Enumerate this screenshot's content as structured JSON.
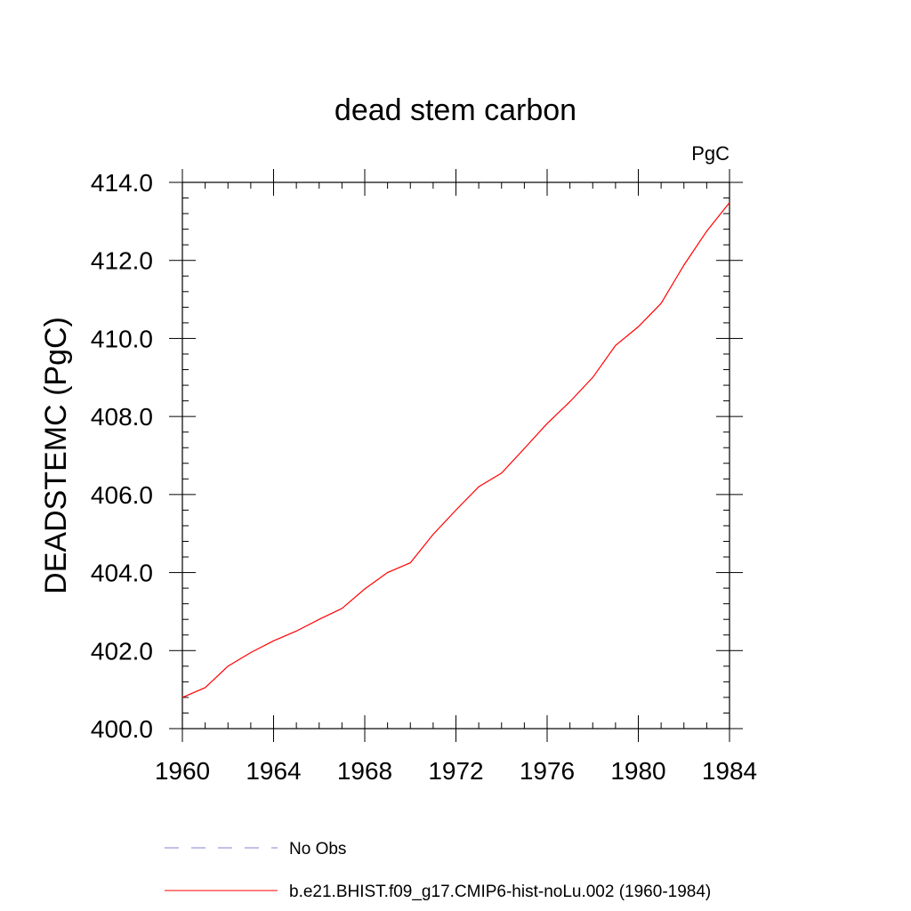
{
  "chart_data": {
    "type": "line",
    "title": "dead stem carbon",
    "units_label": "PgC",
    "xlabel": "",
    "ylabel": "DEADSTEMC  (PgC)",
    "xlim": [
      1960,
      1984
    ],
    "ylim": [
      400.0,
      414.0
    ],
    "x_ticks": [
      "1960",
      "1964",
      "1968",
      "1972",
      "1976",
      "1980",
      "1984"
    ],
    "y_ticks": [
      "400.0",
      "402.0",
      "404.0",
      "406.0",
      "408.0",
      "410.0",
      "412.0",
      "414.0"
    ],
    "grid": false,
    "legend_position": "bottom",
    "series": [
      {
        "name": "b.e21.BHIST.f09_g17.CMIP6-hist-noLu.002 (1960-1984)",
        "color": "#ff0000",
        "style": "solid",
        "x": [
          1960,
          1961,
          1962,
          1963,
          1964,
          1965,
          1966,
          1967,
          1968,
          1969,
          1970,
          1971,
          1972,
          1973,
          1974,
          1975,
          1976,
          1977,
          1978,
          1979,
          1980,
          1981,
          1982,
          1983,
          1984
        ],
        "y": [
          400.8,
          401.05,
          401.6,
          401.95,
          402.25,
          402.5,
          402.8,
          403.08,
          403.58,
          404.0,
          404.25,
          404.98,
          405.6,
          406.2,
          406.55,
          407.18,
          407.82,
          408.38,
          409.0,
          409.82,
          410.3,
          410.9,
          411.88,
          412.75,
          413.48
        ]
      }
    ],
    "legend": [
      {
        "label": "No Obs",
        "color": "#8080d0",
        "style": "dashed"
      },
      {
        "label": "b.e21.BHIST.f09_g17.CMIP6-hist-noLu.002 (1960-1984)",
        "color": "#ff0000",
        "style": "solid"
      }
    ]
  }
}
